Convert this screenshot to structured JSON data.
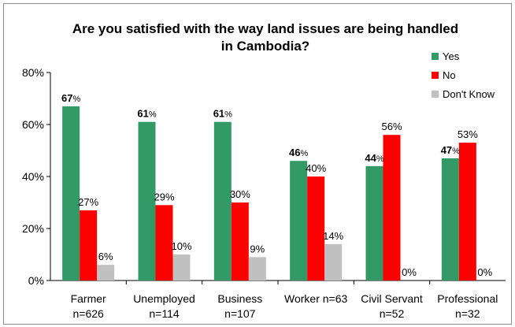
{
  "chart_data": {
    "type": "bar",
    "title_lines": [
      "Are you satisfied with the way land issues are being handled",
      "in Cambodia?"
    ],
    "categories": [
      {
        "line1": "Farmer",
        "line2": "n=626"
      },
      {
        "line1": "Unemployed",
        "line2": "n=114"
      },
      {
        "line1": "Business",
        "line2": "n=107"
      },
      {
        "line1": "Worker n=63",
        "line2": ""
      },
      {
        "line1": "Civil Servant",
        "line2": "n=52"
      },
      {
        "line1": "Professional",
        "line2": "n=32"
      }
    ],
    "series": [
      {
        "name": "Yes",
        "color": "#339966",
        "values": [
          67,
          61,
          61,
          46,
          44,
          47
        ],
        "labels": [
          "67",
          "61",
          "61",
          "46",
          "44",
          "47"
        ]
      },
      {
        "name": "No",
        "color": "#ff0000",
        "values": [
          27,
          29,
          30,
          40,
          56,
          53
        ],
        "labels": [
          "27%",
          "29%",
          "30%",
          "40%",
          "56%",
          "53%"
        ]
      },
      {
        "name": "Don't Know",
        "color": "#c0c0c0",
        "values": [
          6,
          10,
          9,
          14,
          0,
          0
        ],
        "labels": [
          "6%",
          "10%",
          "9%",
          "14%",
          "0%",
          "0%"
        ]
      }
    ],
    "percent_suffix": "%",
    "ylim": [
      0,
      80
    ],
    "yticks": [
      0,
      20,
      40,
      60,
      80
    ],
    "ytick_labels": [
      "0%",
      "20%",
      "40%",
      "60%",
      "80%"
    ],
    "legend_position": "right",
    "grid": false
  }
}
